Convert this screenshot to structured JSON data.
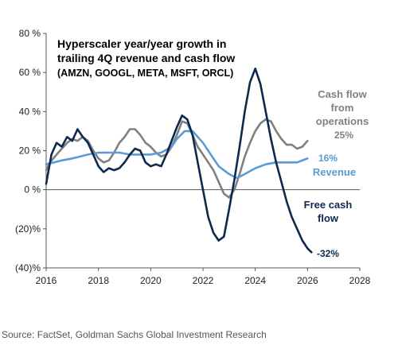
{
  "chart_data": {
    "type": "line",
    "title_lines": [
      "Hyperscaler year/year growth in",
      "trailing 4Q revenue and cash flow",
      "(AMZN, GOOGL, META, MSFT, ORCL)"
    ],
    "xlim": [
      2016,
      2028
    ],
    "ylim": [
      -40,
      80
    ],
    "x_ticks": [
      {
        "value": 2016,
        "label": "2016"
      },
      {
        "value": 2018,
        "label": "2018"
      },
      {
        "value": 2020,
        "label": "2020"
      },
      {
        "value": 2022,
        "label": "2022"
      },
      {
        "value": 2024,
        "label": "2024"
      },
      {
        "value": 2026,
        "label": "2026"
      },
      {
        "value": 2028,
        "label": "2028"
      }
    ],
    "y_ticks": [
      {
        "value": 80,
        "label": "80 %"
      },
      {
        "value": 60,
        "label": "60 %"
      },
      {
        "value": 40,
        "label": "40 %"
      },
      {
        "value": 20,
        "label": "20 %"
      },
      {
        "value": 0,
        "label": "0 %"
      },
      {
        "value": -20,
        "label": "(20)%"
      },
      {
        "value": -40,
        "label": "(40)%"
      }
    ],
    "zero_line": true,
    "grid": false,
    "series": [
      {
        "name": "Cash flow from operations",
        "label_lines": [
          "Cash flow",
          "from",
          "operations"
        ],
        "end_label": "25%",
        "color": "#808080",
        "x": [
          2016.0,
          2016.15,
          2016.4,
          2016.6,
          2016.8,
          2017.0,
          2017.2,
          2017.4,
          2017.6,
          2017.8,
          2018.0,
          2018.2,
          2018.4,
          2018.6,
          2018.8,
          2019.0,
          2019.2,
          2019.4,
          2019.6,
          2019.8,
          2020.0,
          2020.2,
          2020.4,
          2020.6,
          2020.8,
          2021.0,
          2021.2,
          2021.4,
          2021.6,
          2021.8,
          2022.0,
          2022.2,
          2022.4,
          2022.6,
          2022.8,
          2023.0,
          2023.2,
          2023.4,
          2023.6,
          2023.8,
          2024.0,
          2024.2,
          2024.4,
          2024.6,
          2024.8,
          2025.0,
          2025.2,
          2025.4,
          2025.6,
          2025.8,
          2026.0
        ],
        "y": [
          10,
          14,
          18,
          21,
          24,
          26,
          25,
          27,
          25,
          20,
          16,
          14,
          15,
          19,
          24,
          27,
          31,
          31,
          28,
          24,
          22,
          19,
          17,
          18,
          22,
          28,
          35,
          34,
          28,
          22,
          18,
          14,
          10,
          4,
          -2,
          -4,
          0,
          8,
          17,
          24,
          30,
          34,
          36,
          35,
          30,
          26,
          23,
          23,
          21,
          22,
          25
        ]
      },
      {
        "name": "Revenue",
        "label_lines": [
          "Revenue"
        ],
        "end_label": "16%",
        "color": "#5b9bd5",
        "x": [
          2016.0,
          2016.3,
          2016.6,
          2017.0,
          2017.3,
          2017.6,
          2018.0,
          2018.4,
          2018.8,
          2019.2,
          2019.6,
          2020.0,
          2020.4,
          2020.8,
          2021.0,
          2021.3,
          2021.6,
          2022.0,
          2022.3,
          2022.6,
          2023.0,
          2023.3,
          2023.6,
          2024.0,
          2024.4,
          2024.8,
          2025.2,
          2025.6,
          2026.0
        ],
        "y": [
          13,
          14,
          15,
          16,
          17,
          18,
          19,
          19,
          19,
          18,
          18,
          18,
          19,
          22,
          26,
          30,
          30,
          24,
          18,
          12,
          8,
          6,
          8,
          11,
          13,
          14,
          14,
          14,
          16
        ]
      },
      {
        "name": "Free cash flow",
        "label_lines": [
          "Free cash",
          "flow"
        ],
        "end_label": "-32%",
        "color": "#0d2a4e",
        "x": [
          2016.0,
          2016.2,
          2016.4,
          2016.6,
          2016.8,
          2017.0,
          2017.2,
          2017.4,
          2017.6,
          2017.8,
          2018.0,
          2018.2,
          2018.4,
          2018.6,
          2018.8,
          2019.0,
          2019.2,
          2019.4,
          2019.6,
          2019.8,
          2020.0,
          2020.2,
          2020.4,
          2020.6,
          2020.8,
          2021.0,
          2021.2,
          2021.4,
          2021.6,
          2021.8,
          2022.0,
          2022.2,
          2022.4,
          2022.6,
          2022.8,
          2023.0,
          2023.2,
          2023.4,
          2023.6,
          2023.8,
          2024.0,
          2024.2,
          2024.4,
          2024.6,
          2024.8,
          2025.0,
          2025.2,
          2025.4,
          2025.6,
          2025.8,
          2026.0,
          2026.15
        ],
        "y": [
          3,
          18,
          24,
          22,
          27,
          25,
          31,
          27,
          24,
          18,
          12,
          9,
          11,
          10,
          11,
          14,
          18,
          21,
          20,
          14,
          12,
          13,
          12,
          18,
          25,
          32,
          38,
          36,
          28,
          14,
          0,
          -14,
          -22,
          -26,
          -24,
          -10,
          5,
          22,
          40,
          55,
          62,
          54,
          40,
          26,
          14,
          4,
          -6,
          -14,
          -20,
          -26,
          -30,
          -32
        ]
      }
    ]
  },
  "source": "Source: FactSet, Goldman Sachs Global Investment Research"
}
